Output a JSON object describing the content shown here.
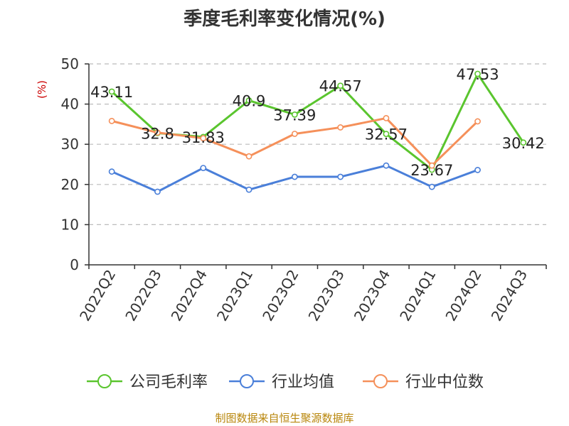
{
  "chart_data": {
    "type": "line",
    "title": "季度毛利率变化情况(%)",
    "ylabel": "(%)",
    "xlabel": "",
    "ylim": [
      0,
      50
    ],
    "yticks": [
      0,
      10,
      20,
      30,
      40,
      50
    ],
    "grid": true,
    "legend_position": "bottom",
    "categories": [
      "2022Q2",
      "2022Q3",
      "2022Q4",
      "2023Q1",
      "2023Q2",
      "2023Q3",
      "2023Q4",
      "2024Q1",
      "2024Q2",
      "2024Q3"
    ],
    "series": [
      {
        "name": "公司毛利率",
        "color": "#5ac52e",
        "labeled": true,
        "values": [
          43.11,
          32.8,
          31.83,
          40.9,
          37.39,
          44.57,
          32.57,
          23.67,
          47.53,
          30.42
        ]
      },
      {
        "name": "行业均值",
        "color": "#4a7fd9",
        "labeled": false,
        "values": [
          23.2,
          18.2,
          24.1,
          18.7,
          21.9,
          21.9,
          24.7,
          19.4,
          23.6,
          null
        ]
      },
      {
        "name": "行业中位数",
        "color": "#f5905a",
        "labeled": false,
        "values": [
          35.8,
          32.9,
          31.5,
          27.0,
          32.6,
          34.2,
          36.5,
          24.7,
          35.7,
          null
        ]
      }
    ],
    "data_labels": [
      "43.11",
      "32.8",
      "31.83",
      "40.9",
      "37.39",
      "44.57",
      "32.57",
      "23.67",
      "47.53",
      "30.42"
    ]
  },
  "source": "制图数据来自恒生聚源数据库"
}
